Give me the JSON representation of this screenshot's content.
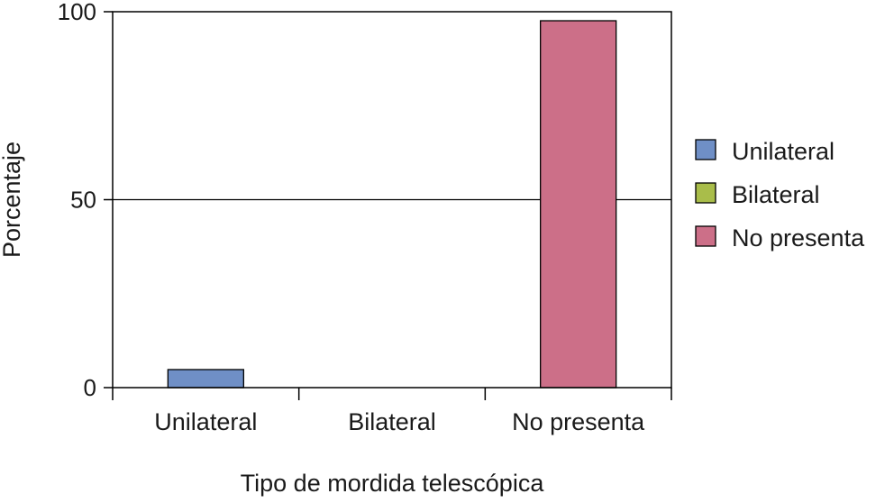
{
  "chart_data": {
    "type": "bar",
    "categories": [
      "Unilateral",
      "Bilateral",
      "No presenta"
    ],
    "values": [
      4.8,
      0,
      97.6
    ],
    "colors": [
      "#6f8fc6",
      "#a9bd4a",
      "#cc6f88"
    ],
    "xlabel": "Tipo de mordida telescópica",
    "ylabel": "Porcentaje",
    "ylim": [
      0,
      100
    ],
    "yticks": [
      0,
      50,
      100
    ],
    "grid": true,
    "legend": {
      "position": "right",
      "entries": [
        "Unilateral",
        "Bilateral",
        "No presenta"
      ]
    }
  }
}
